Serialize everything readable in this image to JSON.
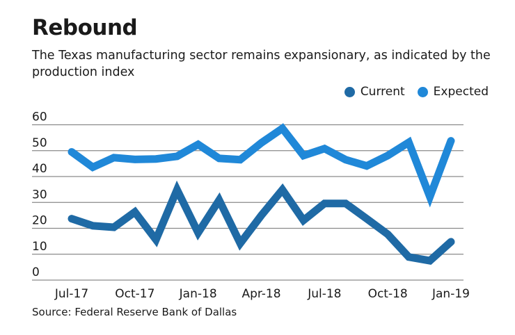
{
  "chart_data": {
    "type": "line",
    "title": "Rebound",
    "subtitle": "The Texas manufacturing sector remains expansionary, as indicated by the production index",
    "x": [
      "Jul-17",
      "Aug-17",
      "Sep-17",
      "Oct-17",
      "Nov-17",
      "Dec-17",
      "Jan-18",
      "Feb-18",
      "Mar-18",
      "Apr-18",
      "May-18",
      "Jun-18",
      "Jul-18",
      "Aug-18",
      "Sep-18",
      "Oct-18",
      "Nov-18",
      "Dec-18",
      "Jan-19"
    ],
    "xtick_labels": [
      "Jul-17",
      "Oct-17",
      "Jan-18",
      "Apr-18",
      "Jul-18",
      "Oct-18",
      "Jan-19"
    ],
    "yticks": [
      0,
      10,
      20,
      30,
      40,
      50,
      60
    ],
    "ylim": [
      0,
      60
    ],
    "grid": true,
    "legend": "top-right",
    "series": [
      {
        "name": "Current",
        "color": "#1F6AA5",
        "values": [
          23.7,
          21.0,
          20.4,
          26.3,
          15.6,
          34.9,
          18.3,
          30.9,
          14.2,
          25.0,
          34.9,
          23.1,
          29.6,
          29.6,
          23.7,
          17.7,
          8.9,
          7.5,
          14.8
        ]
      },
      {
        "name": "Expected",
        "color": "#2088D8",
        "values": [
          49.5,
          43.6,
          47.3,
          46.6,
          46.8,
          47.8,
          52.4,
          47.0,
          46.5,
          53.0,
          58.6,
          48.1,
          50.8,
          46.5,
          44.1,
          48.1,
          53.2,
          32.2,
          53.8
        ]
      }
    ],
    "source": "Source: Federal Reserve Bank of Dallas"
  }
}
